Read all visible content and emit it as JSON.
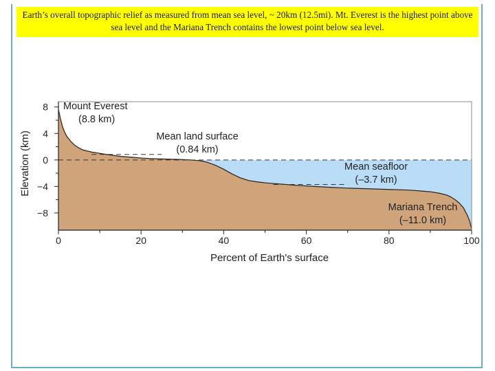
{
  "caption": "Earth’s overall topographic relief as measured from mean sea level, ~ 20km (12.5mi). Mt. Everest is the highest point above sea level and the Mariana Trench contains the lowest point below sea level.",
  "colors": {
    "land": "#cfa47a",
    "ocean": "#b9dcf7",
    "outline": "#222222",
    "caption_bg": "#ffff00",
    "frame": "#6aaec4"
  },
  "chart_data": {
    "type": "area",
    "title": "",
    "xlabel": "Percent of Earth's surface",
    "ylabel": "Elevation (km)",
    "xlim": [
      0,
      100
    ],
    "ylim": [
      -10.6,
      8.8
    ],
    "xticks": [
      0,
      20,
      40,
      60,
      80,
      100
    ],
    "yticks": [
      8,
      4,
      0,
      -4,
      -8
    ],
    "ytick_labels": [
      "8",
      "4",
      "0",
      "−4",
      "−8"
    ],
    "x_minor_ticks": [
      10,
      30,
      50,
      70,
      90
    ],
    "y_minor_ticks": [
      6,
      2,
      -2,
      -6
    ],
    "sea_level": 0,
    "profile": {
      "x": [
        0,
        0.5,
        1,
        1.5,
        2,
        3,
        4,
        5,
        6,
        8,
        10,
        12,
        15,
        18,
        20,
        22,
        25,
        28,
        30,
        32,
        34,
        35,
        36,
        38,
        40,
        42,
        44,
        46,
        48,
        50,
        52,
        55,
        58,
        62,
        65,
        70,
        75,
        80,
        85,
        88,
        90,
        92,
        94,
        95,
        96,
        97,
        98,
        99,
        99.5,
        100
      ],
      "y": [
        7.6,
        6.2,
        5.0,
        4.2,
        3.6,
        2.8,
        2.2,
        1.8,
        1.5,
        1.2,
        1.0,
        0.8,
        0.55,
        0.4,
        0.3,
        0.22,
        0.15,
        0.1,
        0.06,
        0.0,
        -0.1,
        -0.2,
        -0.35,
        -0.8,
        -1.4,
        -2.1,
        -2.7,
        -3.1,
        -3.3,
        -3.45,
        -3.55,
        -3.7,
        -3.85,
        -4.0,
        -4.1,
        -4.25,
        -4.35,
        -4.45,
        -4.55,
        -4.7,
        -4.8,
        -5.0,
        -5.3,
        -5.6,
        -6.0,
        -6.5,
        -7.2,
        -8.4,
        -9.2,
        -10.4
      ]
    },
    "annotations": [
      {
        "id": "everest",
        "lines": [
          "Mount Everest",
          "(8.8 km)"
        ],
        "value_km": 8.8
      },
      {
        "id": "mean-land",
        "lines": [
          "Mean land surface",
          "(0.84 km)"
        ],
        "value_km": 0.84,
        "leader": {
          "x1": 8,
          "x2": 25,
          "y": 0.84
        }
      },
      {
        "id": "mean-seafloor",
        "lines": [
          "Mean seafloor",
          "(–3.7 km)"
        ],
        "value_km": -3.7,
        "leader": {
          "x1": 52,
          "x2": 70,
          "y": -3.7
        }
      },
      {
        "id": "mariana",
        "lines": [
          "Mariana Trench",
          "(–11.0 km)"
        ],
        "value_km": -11.0
      }
    ]
  }
}
